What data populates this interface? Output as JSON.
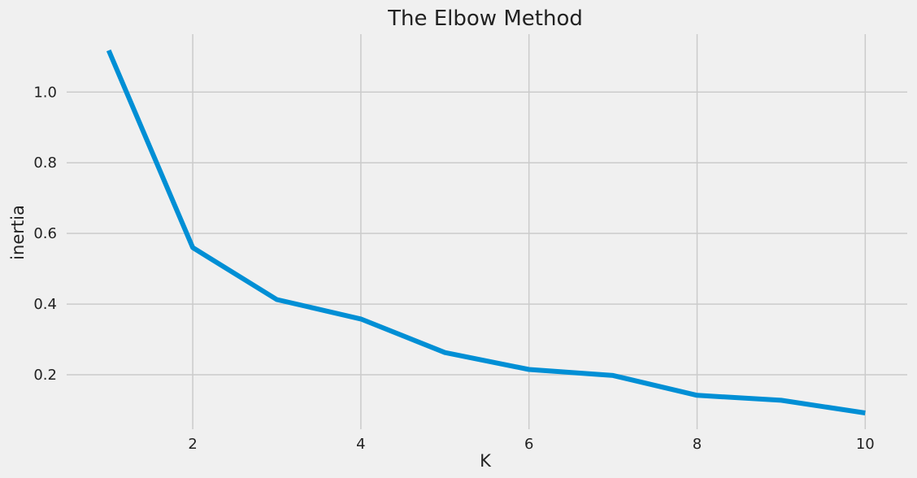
{
  "chart_data": {
    "type": "line",
    "title": "The Elbow Method",
    "xlabel": "K",
    "ylabel": "inertia",
    "x": [
      1,
      2,
      3,
      4,
      5,
      6,
      7,
      8,
      9,
      10
    ],
    "series": [
      {
        "values": [
          1.118,
          0.56,
          0.413,
          0.358,
          0.263,
          0.215,
          0.198,
          0.142,
          0.128,
          0.092
        ],
        "color": "#008fd5"
      }
    ],
    "xticks": [
      "2",
      "4",
      "6",
      "8",
      "10"
    ],
    "yticks": [
      "0.2",
      "0.4",
      "0.6",
      "0.8",
      "1.0"
    ],
    "xlim": [
      0.5,
      10.5
    ],
    "ylim": [
      0.046,
      1.164
    ],
    "grid": true,
    "legend": "none",
    "background_color": "#f0f0f0",
    "grid_color": "#cbcbcb"
  }
}
